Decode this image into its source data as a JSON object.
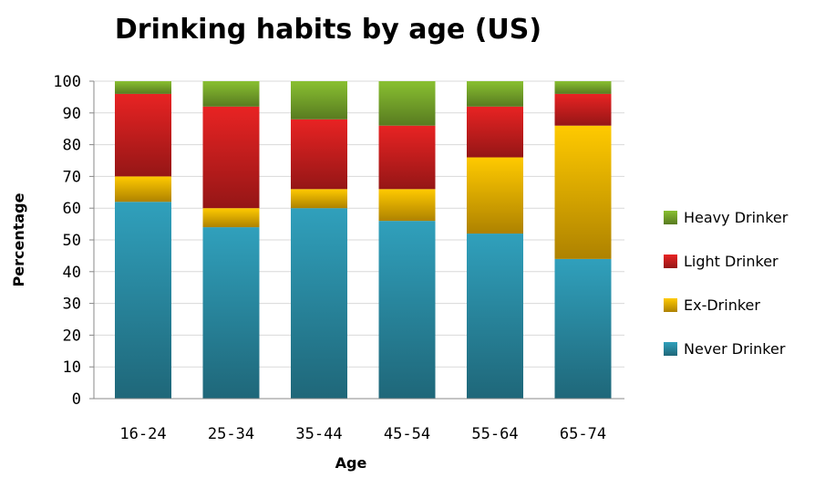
{
  "chart_data": {
    "type": "bar",
    "stacked": true,
    "title": "Drinking habits by age (US)",
    "xlabel": "Age",
    "ylabel": "Percentage",
    "ylim": [
      0,
      100
    ],
    "yticks": [
      0,
      10,
      20,
      30,
      40,
      50,
      60,
      70,
      80,
      90,
      100
    ],
    "grid": true,
    "legend_position": "right",
    "categories": [
      "16-24",
      "25-34",
      "35-44",
      "45-54",
      "55-64",
      "65-74"
    ],
    "series": [
      {
        "name": "Never Drinker",
        "color": "#2b8fa8",
        "values": [
          62,
          54,
          60,
          56,
          52,
          44
        ]
      },
      {
        "name": "Ex-Drinker",
        "color": "#f2b400",
        "values": [
          8,
          6,
          6,
          10,
          24,
          42
        ]
      },
      {
        "name": "Light Drinker",
        "color": "#cf1f1f",
        "values": [
          26,
          32,
          22,
          20,
          16,
          10
        ]
      },
      {
        "name": "Heavy Drinker",
        "color": "#7aab2c",
        "values": [
          4,
          8,
          12,
          14,
          8,
          4
        ]
      }
    ],
    "legend_order": [
      "Heavy Drinker",
      "Light Drinker",
      "Ex-Drinker",
      "Never Drinker"
    ]
  }
}
